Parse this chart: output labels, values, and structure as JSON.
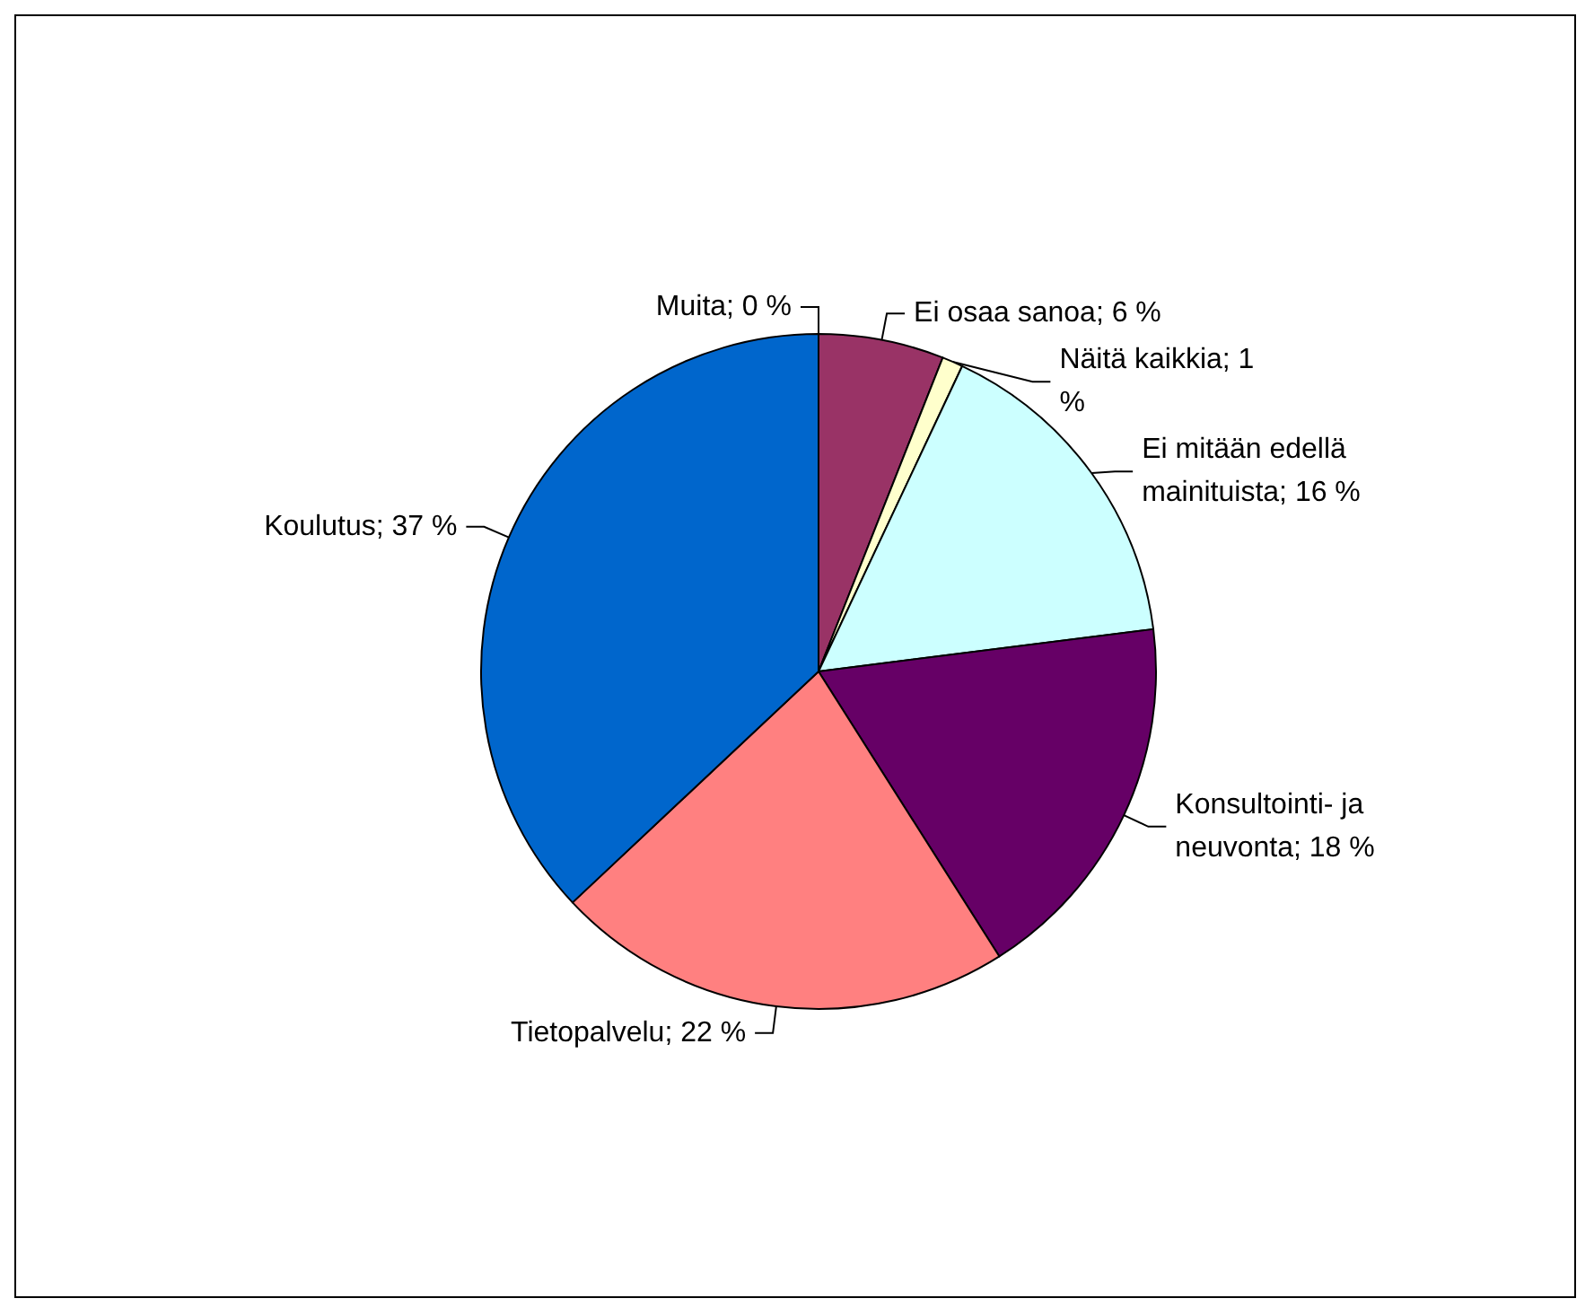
{
  "chart_data": {
    "type": "pie",
    "categories": [
      "Muita",
      "Ei osaa sanoa",
      "Näitä kaikkia",
      "Ei mitään edellä mainituista",
      "Konsultointi- ja neuvonta",
      "Tietopalvelu",
      "Koulutus"
    ],
    "values": [
      0,
      6,
      1,
      16,
      18,
      22,
      37
    ],
    "colors": [
      "#808080",
      "#993366",
      "#ffffcc",
      "#ccffff",
      "#660066",
      "#ff8080",
      "#0066cc"
    ],
    "value_labels": [
      "0 %",
      "6 %",
      "1 %",
      "16 %",
      "18 %",
      "22 %",
      "37 %"
    ]
  }
}
